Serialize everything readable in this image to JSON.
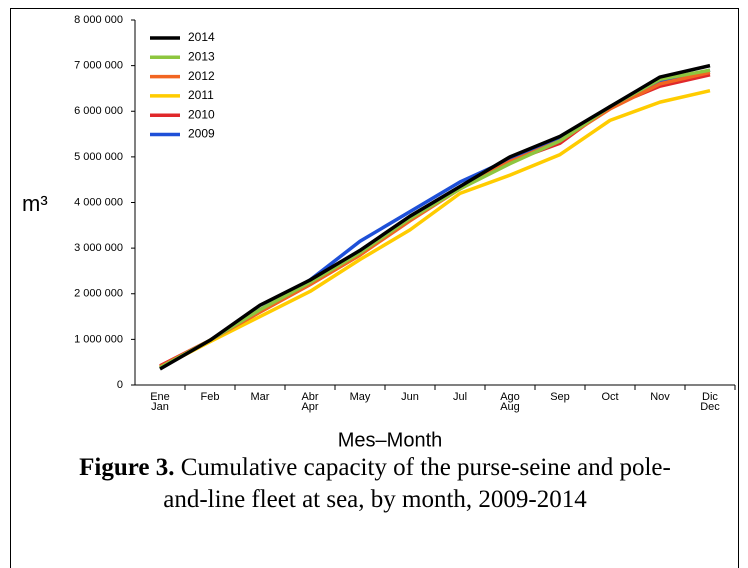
{
  "chart_data": {
    "type": "line",
    "x_label": "Mes–Month",
    "y_label": "m³",
    "caption_label": "Figure 3.",
    "caption": "Cumulative capacity of the purse-seine and pole-and-line fleet at sea, by month, 2009-2014",
    "categories": [
      "Ene\nJan",
      "Feb",
      "Mar",
      "Abr\nApr",
      "May",
      "Jun",
      "Jul",
      "Ago\nAug",
      "Sep",
      "Oct",
      "Nov",
      "Dic\nDec"
    ],
    "series": [
      {
        "name": "2014",
        "color": "#000000",
        "values": [
          350000,
          980000,
          1750000,
          2300000,
          2950000,
          3700000,
          4350000,
          5000000,
          5450000,
          6100000,
          6750000,
          7000000
        ]
      },
      {
        "name": "2013",
        "color": "#8dc63f",
        "values": [
          380000,
          980000,
          1650000,
          2250000,
          2900000,
          3650000,
          4300000,
          4850000,
          5350000,
          6100000,
          6700000,
          6900000
        ]
      },
      {
        "name": "2012",
        "color": "#f26522",
        "values": [
          400000,
          980000,
          1600000,
          2200000,
          2850000,
          3600000,
          4300000,
          4900000,
          5350000,
          6050000,
          6600000,
          6850000
        ]
      },
      {
        "name": "2011",
        "color": "#ffcc00",
        "values": [
          380000,
          950000,
          1500000,
          2050000,
          2750000,
          3400000,
          4200000,
          4600000,
          5050000,
          5800000,
          6200000,
          6450000
        ]
      },
      {
        "name": "2010",
        "color": "#e0282b",
        "values": [
          420000,
          980000,
          1600000,
          2200000,
          2850000,
          3650000,
          4300000,
          4900000,
          5300000,
          6100000,
          6550000,
          6800000
        ]
      },
      {
        "name": "2009",
        "color": "#1e50d8",
        "values": [
          380000,
          980000,
          1650000,
          2300000,
          3150000,
          3800000,
          4450000,
          4950000,
          5400000,
          6100000,
          6650000,
          6900000
        ]
      }
    ],
    "ylim": [
      0,
      8000000
    ],
    "yticks": [
      0,
      {
        "value": 1000000,
        "label": "1 000 000"
      },
      {
        "value": 2000000,
        "label": "2 000 000"
      },
      {
        "value": 3000000,
        "label": "3 000 000"
      },
      {
        "value": 4000000,
        "label": "4 000 000"
      },
      {
        "value": 5000000,
        "label": "5 000 000"
      },
      {
        "value": 6000000,
        "label": "6 000 000"
      },
      {
        "value": 7000000,
        "label": "7 000 000"
      },
      {
        "value": 8000000,
        "label": "8 000 000"
      }
    ],
    "legend": "upper left"
  }
}
